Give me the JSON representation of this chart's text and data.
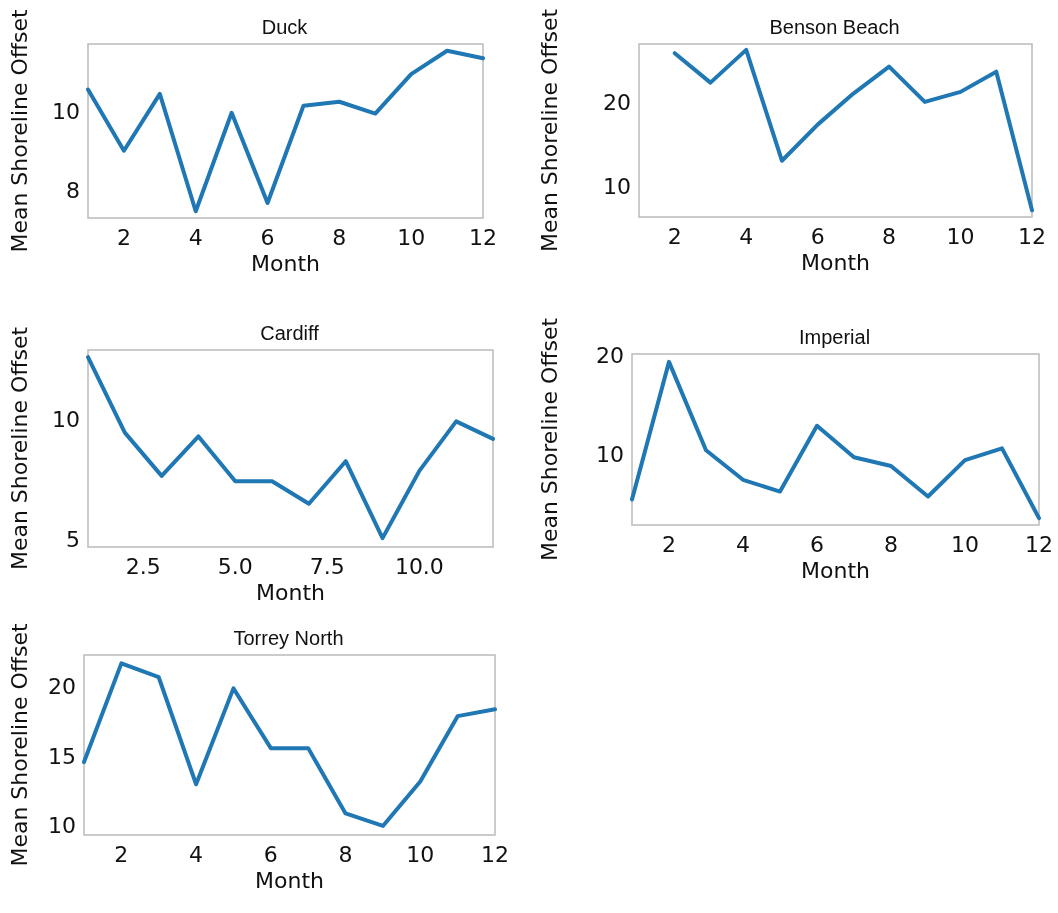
{
  "chart_data": [
    {
      "type": "line",
      "title": "Duck",
      "xlabel": "Month",
      "ylabel": "Mean Shoreline Offset",
      "x": [
        1,
        2,
        3,
        4,
        5,
        6,
        7,
        8,
        9,
        10,
        11,
        12
      ],
      "series": [
        {
          "color": "#1f77b4",
          "values": [
            10.55,
            9.0,
            10.44,
            7.47,
            9.96,
            7.68,
            10.14,
            10.24,
            9.94,
            10.94,
            11.53,
            11.34
          ]
        }
      ],
      "xlim": [
        1,
        12
      ],
      "xticks": [
        2,
        4,
        6,
        8,
        10,
        12
      ],
      "ylim": [
        7.3,
        11.7
      ],
      "yticks": [
        8,
        10
      ],
      "marker": "none",
      "line_style": "solid"
    },
    {
      "type": "line",
      "title": "Benson Beach",
      "xlabel": "Month",
      "ylabel": "Mean Shoreline Offset",
      "x": [
        2,
        3,
        4,
        5,
        6,
        7,
        8,
        9,
        10,
        11,
        12
      ],
      "series": [
        {
          "color": "#1f77b4",
          "values": [
            25.9,
            22.4,
            26.3,
            13.1,
            17.4,
            21.1,
            24.3,
            20.1,
            21.3,
            23.7,
            7.2
          ]
        }
      ],
      "xlim": [
        1,
        12
      ],
      "xticks": [
        2,
        4,
        6,
        8,
        10,
        12
      ],
      "ylim": [
        6.4,
        27
      ],
      "yticks": [
        10,
        20
      ],
      "marker": "none",
      "line_style": "solid"
    },
    {
      "type": "line",
      "title": "Cardiff",
      "xlabel": "Month",
      "ylabel": "Mean Shoreline Offset",
      "x": [
        1,
        2,
        3,
        4,
        5,
        6,
        7,
        8,
        9,
        10,
        11,
        12
      ],
      "series": [
        {
          "color": "#1f77b4",
          "values": [
            12.6,
            9.46,
            7.66,
            9.3,
            7.44,
            7.44,
            6.5,
            8.27,
            5.07,
            7.87,
            9.93,
            9.2
          ]
        }
      ],
      "xlim": [
        1,
        12
      ],
      "xticks": [
        2.5,
        {
          "value": 5,
          "label": "5.0"
        },
        7.5,
        {
          "value": 10,
          "label": "10.0"
        }
      ],
      "ylim": [
        4.7,
        12.9
      ],
      "yticks": [
        5,
        10
      ],
      "marker": "none",
      "line_style": "solid"
    },
    {
      "type": "line",
      "title": "Imperial",
      "xlabel": "Month",
      "ylabel": "Mean Shoreline Offset",
      "x": [
        1,
        2,
        3,
        4,
        5,
        6,
        7,
        8,
        9,
        10,
        11,
        12
      ],
      "series": [
        {
          "color": "#1f77b4",
          "values": [
            5.4,
            19.4,
            10.4,
            7.4,
            6.2,
            12.9,
            9.7,
            8.8,
            5.7,
            9.4,
            10.6,
            3.5
          ]
        }
      ],
      "xlim": [
        1,
        12
      ],
      "xticks": [
        2,
        4,
        6,
        8,
        10,
        12
      ],
      "ylim": [
        2.8,
        20.2
      ],
      "yticks": [
        10,
        20
      ],
      "marker": "none",
      "line_style": "solid"
    },
    {
      "type": "line",
      "title": "Torrey North",
      "xlabel": "Month",
      "ylabel": "Mean Shoreline Offset",
      "x": [
        1,
        2,
        3,
        4,
        5,
        6,
        7,
        8,
        9,
        10,
        11,
        12
      ],
      "series": [
        {
          "color": "#1f77b4",
          "values": [
            14.6,
            21.7,
            20.7,
            13.0,
            19.9,
            15.6,
            15.6,
            10.9,
            10.0,
            13.2,
            17.9,
            18.4
          ]
        }
      ],
      "xlim": [
        1,
        12
      ],
      "xticks": [
        2,
        4,
        6,
        8,
        10,
        12
      ],
      "ylim": [
        9.35,
        22.3
      ],
      "yticks": [
        10,
        15,
        20
      ],
      "marker": "none",
      "line_style": "solid"
    }
  ]
}
